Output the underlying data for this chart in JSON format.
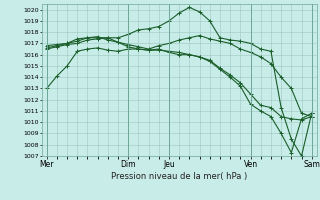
{
  "title": "Pression niveau de la mer( hPa )",
  "bg_color": "#c8ece8",
  "grid_color": "#9ec8c0",
  "line_color": "#1a5e2a",
  "ylim": [
    1007,
    1020.5
  ],
  "ytick_min": 1007,
  "ytick_max": 1020,
  "day_labels": [
    "Mer",
    "Dim",
    "Jeu",
    "Ven",
    "Sam"
  ],
  "day_positions": [
    0,
    8,
    12,
    20,
    26
  ],
  "n_points": 27,
  "series": [
    [
      1013.0,
      1014.1,
      1015.0,
      1016.3,
      1016.5,
      1016.6,
      1016.4,
      1016.3,
      1016.5,
      1016.5,
      1016.4,
      1016.4,
      1016.3,
      1016.2,
      1016.0,
      1015.8,
      1015.5,
      1014.8,
      1014.2,
      1013.5,
      1012.5,
      1011.5,
      1011.3,
      1010.5,
      1010.3,
      1010.2,
      1010.5
    ],
    [
      1016.8,
      1016.9,
      1017.0,
      1017.4,
      1017.5,
      1017.6,
      1017.3,
      1017.1,
      1016.7,
      1016.5,
      1016.4,
      1016.5,
      1016.2,
      1016.0,
      1016.0,
      1015.8,
      1015.4,
      1014.7,
      1014.0,
      1013.2,
      1011.6,
      1011.0,
      1010.5,
      1009.0,
      1007.3,
      1010.3,
      1010.8
    ],
    [
      1016.6,
      1016.8,
      1017.0,
      1017.2,
      1017.5,
      1017.5,
      1017.5,
      1017.1,
      1016.9,
      1016.7,
      1016.5,
      1016.8,
      1017.0,
      1017.3,
      1017.5,
      1017.7,
      1017.4,
      1017.2,
      1017.0,
      1016.5,
      1016.2,
      1015.8,
      1015.2,
      1014.0,
      1013.0,
      1010.8,
      1010.5
    ],
    [
      1016.5,
      1016.7,
      1016.9,
      1017.0,
      1017.3,
      1017.4,
      1017.5,
      1017.5,
      1017.8,
      1018.2,
      1018.3,
      1018.5,
      1019.0,
      1019.7,
      1020.2,
      1019.8,
      1019.0,
      1017.5,
      1017.3,
      1017.2,
      1017.0,
      1016.5,
      1016.3,
      1011.3,
      1008.5,
      1007.0,
      1010.8
    ]
  ]
}
